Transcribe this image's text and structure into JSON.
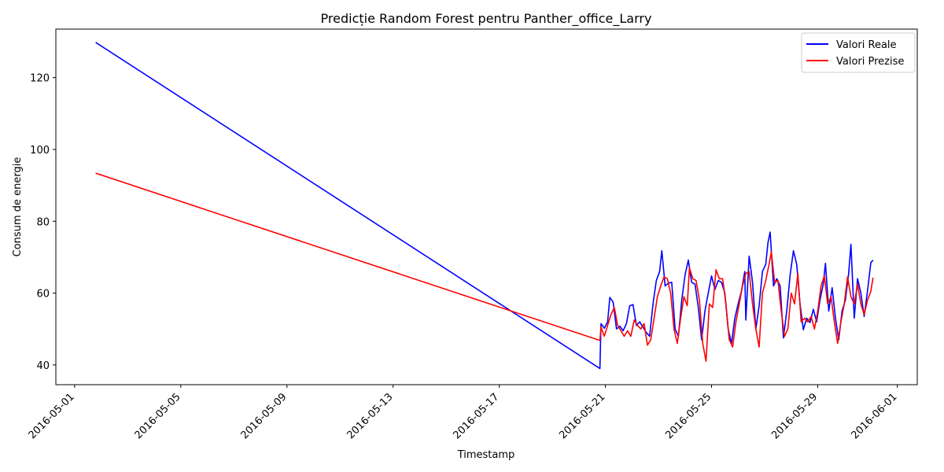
{
  "chart_data": {
    "type": "line",
    "title": "Predicție Random Forest pentru Panther_office_Larry",
    "xlabel": "Timestamp",
    "ylabel": "Consum de energie",
    "x_axis_type": "date",
    "xlim": [
      "2016-04-30T07:00",
      "2016-06-01T18:00"
    ],
    "ylim": [
      34.5,
      133.5
    ],
    "x_ticks": [
      "2016-05-01",
      "2016-05-05",
      "2016-05-09",
      "2016-05-13",
      "2016-05-17",
      "2016-05-21",
      "2016-05-25",
      "2016-05-29",
      "2016-06-01"
    ],
    "y_ticks": [
      40,
      60,
      80,
      100,
      120
    ],
    "grid": false,
    "legend_position": "top-right",
    "series": [
      {
        "name": "Valori Reale",
        "color": "#0000ff",
        "points": [
          [
            "2016-05-01T19:00",
            129.8
          ],
          [
            "2016-05-20T19:00",
            39.0
          ],
          [
            "2016-05-20T20:00",
            51.5
          ],
          [
            "2016-05-20T23:00",
            50.2
          ],
          [
            "2016-05-21T02:00",
            52.0
          ],
          [
            "2016-05-21T04:00",
            58.8
          ],
          [
            "2016-05-21T07:00",
            57.5
          ],
          [
            "2016-05-21T10:00",
            50.0
          ],
          [
            "2016-05-21T13:00",
            50.8
          ],
          [
            "2016-05-21T16:00",
            49.5
          ],
          [
            "2016-05-21T19:00",
            51.5
          ],
          [
            "2016-05-21T22:00",
            56.5
          ],
          [
            "2016-05-22T01:00",
            56.8
          ],
          [
            "2016-05-22T04:00",
            51.0
          ],
          [
            "2016-05-22T07:00",
            52.0
          ],
          [
            "2016-05-22T10:00",
            50.5
          ],
          [
            "2016-05-22T13:00",
            49.0
          ],
          [
            "2016-05-22T16:00",
            48.0
          ],
          [
            "2016-05-22T19:00",
            57.0
          ],
          [
            "2016-05-22T22:00",
            63.5
          ],
          [
            "2016-05-23T01:00",
            66.0
          ],
          [
            "2016-05-23T03:00",
            71.8
          ],
          [
            "2016-05-23T06:00",
            62.0
          ],
          [
            "2016-05-23T09:00",
            62.8
          ],
          [
            "2016-05-23T12:00",
            63.0
          ],
          [
            "2016-05-23T15:00",
            50.0
          ],
          [
            "2016-05-23T18:00",
            48.0
          ],
          [
            "2016-05-23T21:00",
            58.0
          ],
          [
            "2016-05-24T00:00",
            65.0
          ],
          [
            "2016-05-24T03:00",
            69.2
          ],
          [
            "2016-05-24T06:00",
            63.0
          ],
          [
            "2016-05-24T09:00",
            62.5
          ],
          [
            "2016-05-24T12:00",
            56.0
          ],
          [
            "2016-05-24T15:00",
            47.0
          ],
          [
            "2016-05-24T18:00",
            55.0
          ],
          [
            "2016-05-24T21:00",
            60.0
          ],
          [
            "2016-05-25T00:00",
            64.8
          ],
          [
            "2016-05-25T03:00",
            61.0
          ],
          [
            "2016-05-25T06:00",
            63.5
          ],
          [
            "2016-05-25T09:00",
            63.0
          ],
          [
            "2016-05-25T12:00",
            60.0
          ],
          [
            "2016-05-25T15:00",
            50.0
          ],
          [
            "2016-05-25T18:00",
            46.0
          ],
          [
            "2016-05-25T21:00",
            53.0
          ],
          [
            "2016-05-26T00:00",
            57.0
          ],
          [
            "2016-05-26T03:00",
            60.5
          ],
          [
            "2016-05-26T06:00",
            66.0
          ],
          [
            "2016-05-26T07:00",
            52.5
          ],
          [
            "2016-05-26T10:00",
            70.3
          ],
          [
            "2016-05-26T13:00",
            63.0
          ],
          [
            "2016-05-26T16:00",
            50.0
          ],
          [
            "2016-05-26T19:00",
            56.5
          ],
          [
            "2016-05-26T22:00",
            66.0
          ],
          [
            "2016-05-27T01:00",
            68.0
          ],
          [
            "2016-05-27T03:00",
            74.0
          ],
          [
            "2016-05-27T05:00",
            77.0
          ],
          [
            "2016-05-27T08:00",
            62.0
          ],
          [
            "2016-05-27T11:00",
            64.0
          ],
          [
            "2016-05-27T14:00",
            62.0
          ],
          [
            "2016-05-27T17:00",
            47.5
          ],
          [
            "2016-05-27T20:00",
            55.0
          ],
          [
            "2016-05-27T23:00",
            65.0
          ],
          [
            "2016-05-28T02:00",
            71.8
          ],
          [
            "2016-05-28T05:00",
            68.0
          ],
          [
            "2016-05-28T08:00",
            57.0
          ],
          [
            "2016-05-28T11:00",
            49.8
          ],
          [
            "2016-05-28T14:00",
            53.0
          ],
          [
            "2016-05-28T17:00",
            51.8
          ],
          [
            "2016-05-28T20:00",
            55.5
          ],
          [
            "2016-05-28T23:00",
            52.0
          ],
          [
            "2016-05-29T02:00",
            58.0
          ],
          [
            "2016-05-29T05:00",
            62.5
          ],
          [
            "2016-05-29T07:00",
            68.3
          ],
          [
            "2016-05-29T10:00",
            55.0
          ],
          [
            "2016-05-29T13:00",
            61.5
          ],
          [
            "2016-05-29T16:00",
            53.0
          ],
          [
            "2016-05-29T19:00",
            47.0
          ],
          [
            "2016-05-29T22:00",
            55.0
          ],
          [
            "2016-05-30T01:00",
            58.0
          ],
          [
            "2016-05-30T04:00",
            65.5
          ],
          [
            "2016-05-30T06:00",
            73.6
          ],
          [
            "2016-05-30T09:00",
            53.0
          ],
          [
            "2016-05-30T12:00",
            64.0
          ],
          [
            "2016-05-30T15:00",
            60.0
          ],
          [
            "2016-05-30T18:00",
            53.5
          ],
          [
            "2016-05-30T21:00",
            60.5
          ],
          [
            "2016-05-31T00:00",
            68.5
          ],
          [
            "2016-05-31T02:00",
            69.2
          ]
        ]
      },
      {
        "name": "Valori Prezise",
        "color": "#ff0000",
        "points": [
          [
            "2016-05-01T19:00",
            93.4
          ],
          [
            "2016-05-20T19:00",
            46.8
          ],
          [
            "2016-05-20T20:00",
            50.5
          ],
          [
            "2016-05-20T23:00",
            48.0
          ],
          [
            "2016-05-21T02:00",
            51.0
          ],
          [
            "2016-05-21T05:00",
            54.0
          ],
          [
            "2016-05-21T08:00",
            56.0
          ],
          [
            "2016-05-21T11:00",
            51.0
          ],
          [
            "2016-05-21T14:00",
            49.5
          ],
          [
            "2016-05-21T17:00",
            48.0
          ],
          [
            "2016-05-21T20:00",
            49.5
          ],
          [
            "2016-05-21T23:00",
            48.0
          ],
          [
            "2016-05-22T02:00",
            52.5
          ],
          [
            "2016-05-22T05:00",
            51.0
          ],
          [
            "2016-05-22T08:00",
            50.0
          ],
          [
            "2016-05-22T11:00",
            51.5
          ],
          [
            "2016-05-22T14:00",
            45.5
          ],
          [
            "2016-05-22T17:00",
            47.0
          ],
          [
            "2016-05-22T20:00",
            53.0
          ],
          [
            "2016-05-22T23:00",
            59.0
          ],
          [
            "2016-05-23T02:00",
            62.0
          ],
          [
            "2016-05-23T05:00",
            64.5
          ],
          [
            "2016-05-23T08:00",
            64.0
          ],
          [
            "2016-05-23T11:00",
            60.0
          ],
          [
            "2016-05-23T14:00",
            50.0
          ],
          [
            "2016-05-23T17:00",
            46.0
          ],
          [
            "2016-05-23T20:00",
            53.0
          ],
          [
            "2016-05-23T23:00",
            59.0
          ],
          [
            "2016-05-24T02:00",
            56.5
          ],
          [
            "2016-05-24T04:00",
            67.0
          ],
          [
            "2016-05-24T07:00",
            64.0
          ],
          [
            "2016-05-24T10:00",
            63.5
          ],
          [
            "2016-05-24T13:00",
            58.0
          ],
          [
            "2016-05-24T16:00",
            46.0
          ],
          [
            "2016-05-24T19:00",
            41.0
          ],
          [
            "2016-05-24T22:00",
            57.0
          ],
          [
            "2016-05-25T01:00",
            56.0
          ],
          [
            "2016-05-25T04:00",
            66.5
          ],
          [
            "2016-05-25T07:00",
            64.0
          ],
          [
            "2016-05-25T10:00",
            64.0
          ],
          [
            "2016-05-25T13:00",
            57.0
          ],
          [
            "2016-05-25T16:00",
            47.0
          ],
          [
            "2016-05-25T19:00",
            45.0
          ],
          [
            "2016-05-25T22:00",
            52.0
          ],
          [
            "2016-05-26T01:00",
            57.0
          ],
          [
            "2016-05-26T04:00",
            62.0
          ],
          [
            "2016-05-26T07:00",
            65.5
          ],
          [
            "2016-05-26T10:00",
            66.0
          ],
          [
            "2016-05-26T13:00",
            57.0
          ],
          [
            "2016-05-26T16:00",
            50.0
          ],
          [
            "2016-05-26T19:00",
            45.0
          ],
          [
            "2016-05-26T22:00",
            60.0
          ],
          [
            "2016-05-27T01:00",
            63.5
          ],
          [
            "2016-05-27T04:00",
            68.0
          ],
          [
            "2016-05-27T06:00",
            71.5
          ],
          [
            "2016-05-27T09:00",
            63.0
          ],
          [
            "2016-05-27T12:00",
            63.5
          ],
          [
            "2016-05-27T15:00",
            55.0
          ],
          [
            "2016-05-27T18:00",
            48.0
          ],
          [
            "2016-05-27T21:00",
            50.0
          ],
          [
            "2016-05-28T00:00",
            60.0
          ],
          [
            "2016-05-28T03:00",
            57.0
          ],
          [
            "2016-05-28T06:00",
            65.5
          ],
          [
            "2016-05-28T09:00",
            52.0
          ],
          [
            "2016-05-28T12:00",
            53.0
          ],
          [
            "2016-05-28T15:00",
            52.0
          ],
          [
            "2016-05-28T18:00",
            53.5
          ],
          [
            "2016-05-28T21:00",
            50.0
          ],
          [
            "2016-05-29T00:00",
            55.0
          ],
          [
            "2016-05-29T03:00",
            62.0
          ],
          [
            "2016-05-29T06:00",
            64.8
          ],
          [
            "2016-05-29T09:00",
            57.0
          ],
          [
            "2016-05-29T12:00",
            59.0
          ],
          [
            "2016-05-29T15:00",
            52.0
          ],
          [
            "2016-05-29T18:00",
            46.0
          ],
          [
            "2016-05-29T21:00",
            52.0
          ],
          [
            "2016-05-30T00:00",
            57.0
          ],
          [
            "2016-05-30T03:00",
            64.5
          ],
          [
            "2016-05-30T06:00",
            59.0
          ],
          [
            "2016-05-30T09:00",
            57.0
          ],
          [
            "2016-05-30T12:00",
            62.5
          ],
          [
            "2016-05-30T15:00",
            57.0
          ],
          [
            "2016-05-30T18:00",
            54.0
          ],
          [
            "2016-05-30T21:00",
            58.0
          ],
          [
            "2016-05-31T00:00",
            60.5
          ],
          [
            "2016-05-31T02:00",
            64.3
          ]
        ]
      }
    ]
  }
}
